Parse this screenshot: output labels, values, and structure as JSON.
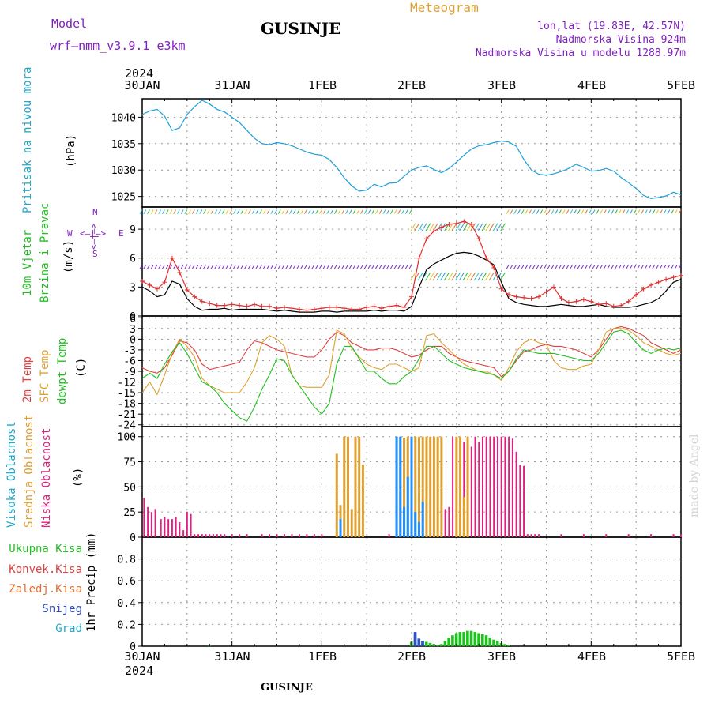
{
  "header": {
    "model_label": "Model",
    "model_name": "wrf—nmm_v3.9.1  e3km",
    "location_title": "GUSINJE",
    "meteogram_label": "Meteogram",
    "coords": "lon,lat (19.83E, 42.57N)",
    "elevation": "Nadmorska Visina 924m",
    "model_elevation": "Nadmorska Visina u modelu 1288.97m",
    "year_top": "2024",
    "year_bottom": "2024",
    "footer_location": "GUSINJE",
    "watermark": "made by Angel"
  },
  "time_axis": {
    "labels": [
      "30JAN",
      "31JAN",
      "1FEB",
      "2FEB",
      "3FEB",
      "4FEB",
      "5FEB"
    ],
    "hours_range": [
      0,
      144
    ]
  },
  "labels": {
    "pressure": "Pritisak na nivou mora",
    "pressure_unit": "(hPa)",
    "wind_a": "10m Vjetar",
    "wind_b": "Brzina i Pravac",
    "wind_unit": "(m/s)",
    "compass_n": "N",
    "compass_s": "S",
    "compass_w": "W",
    "compass_e": "E",
    "compass_arrows": "<—|—>",
    "temp_2m": "2m Temp",
    "temp_sfc": "SFC Temp",
    "temp_dew": "dewpt Temp",
    "temp_unit": "(C)",
    "cloud_high": "Visoka Oblacnost",
    "cloud_mid": "Srednja Oblacnost",
    "cloud_low": "Niska Oblacnost",
    "cloud_unit": "(%)",
    "precip_total": "Ukupna Kisa",
    "precip_conv": "Konvek.Kisa",
    "precip_frz": "Zaledj.Kisa",
    "precip_snow": "Snijeg",
    "precip_grad": "Grad",
    "precip_unit": "1hr Precip (mm)"
  },
  "colors": {
    "pressure": "#1ea0d8",
    "wind_speed": "#000000",
    "wind_gust": "#e03030",
    "wind_violet": "#7b2fc8",
    "temp_2m": "#e04040",
    "temp_sfc": "#e0a030",
    "temp_dew": "#20c020",
    "cloud_high": "#1e90ff",
    "cloud_mid": "#e0a030",
    "cloud_low": "#e0207f",
    "precip_total": "#20c020",
    "precip_snow": "#3050c8",
    "purple_text": "#8020c0",
    "orange_text": "#e0a030",
    "cyan_text": "#20a8c8",
    "green_text": "#20c020",
    "red_text": "#e04040",
    "blue_text": "#3050c8"
  },
  "chart_data": [
    {
      "type": "line",
      "name": "pressure",
      "ylim": [
        1023,
        1043.5
      ],
      "yticks": [
        1025,
        1030,
        1035,
        1040
      ],
      "x": [
        0,
        2,
        4,
        6,
        8,
        10,
        12,
        14,
        16,
        18,
        20,
        22,
        24,
        26,
        28,
        30,
        32,
        34,
        36,
        38,
        40,
        42,
        44,
        46,
        48,
        50,
        52,
        54,
        56,
        58,
        60,
        62,
        64,
        66,
        68,
        70,
        72,
        74,
        76,
        78,
        80,
        82,
        84,
        86,
        88,
        90,
        92,
        94,
        96,
        98,
        100,
        102,
        104,
        106,
        108,
        110,
        112,
        114,
        116,
        118,
        120,
        122,
        124,
        126,
        128,
        130,
        132,
        134,
        136,
        138,
        140,
        142,
        144
      ],
      "values": [
        1040.5,
        1041.2,
        1041.5,
        1040.2,
        1037.5,
        1038.0,
        1040.5,
        1042.0,
        1043.2,
        1042.5,
        1041.5,
        1041.0,
        1040.0,
        1039.0,
        1037.5,
        1036.0,
        1035.0,
        1034.8,
        1035.2,
        1035.0,
        1034.6,
        1034.0,
        1033.4,
        1033.0,
        1032.8,
        1032.0,
        1030.5,
        1028.5,
        1027.0,
        1026.0,
        1026.2,
        1027.3,
        1026.8,
        1027.5,
        1027.6,
        1028.8,
        1030.0,
        1030.5,
        1030.8,
        1030.1,
        1029.5,
        1030.3,
        1031.5,
        1032.8,
        1034.0,
        1034.6,
        1034.8,
        1035.2,
        1035.5,
        1035.3,
        1034.5,
        1032.0,
        1030.0,
        1029.2,
        1029.0,
        1029.3,
        1029.7,
        1030.3,
        1031.1,
        1030.5,
        1029.8,
        1029.9,
        1030.3,
        1029.8,
        1028.6,
        1027.6,
        1026.5,
        1025.2,
        1024.6,
        1024.8,
        1025.1,
        1025.8,
        1025.3
      ]
    },
    {
      "type": "line",
      "name": "wind",
      "ylim": [
        0,
        11.3
      ],
      "yticks": [
        0,
        3,
        6,
        9
      ],
      "x": [
        0,
        2,
        4,
        6,
        8,
        10,
        12,
        14,
        16,
        18,
        20,
        22,
        24,
        26,
        28,
        30,
        32,
        34,
        36,
        38,
        40,
        42,
        44,
        46,
        48,
        50,
        52,
        54,
        56,
        58,
        60,
        62,
        64,
        66,
        68,
        70,
        72,
        74,
        76,
        78,
        80,
        82,
        84,
        86,
        88,
        90,
        92,
        94,
        96,
        98,
        100,
        102,
        104,
        106,
        108,
        110,
        112,
        114,
        116,
        118,
        120,
        122,
        124,
        126,
        128,
        130,
        132,
        134,
        136,
        138,
        140,
        142,
        144
      ],
      "series": [
        {
          "name": "speed",
          "values": [
            3.0,
            2.6,
            2.0,
            2.2,
            3.6,
            3.3,
            1.8,
            1.0,
            0.6,
            0.7,
            0.7,
            0.8,
            0.6,
            0.7,
            0.7,
            0.7,
            0.7,
            0.6,
            0.5,
            0.6,
            0.5,
            0.4,
            0.4,
            0.4,
            0.5,
            0.5,
            0.4,
            0.5,
            0.5,
            0.5,
            0.5,
            0.6,
            0.5,
            0.6,
            0.6,
            0.5,
            1.0,
            3.0,
            4.8,
            5.4,
            5.8,
            6.2,
            6.5,
            6.6,
            6.5,
            6.2,
            5.8,
            5.3,
            3.5,
            1.8,
            1.4,
            1.2,
            1.1,
            1.0,
            1.0,
            1.1,
            1.2,
            1.1,
            1.0,
            1.0,
            1.1,
            1.2,
            1.0,
            0.9,
            0.9,
            0.9,
            1.0,
            1.2,
            1.4,
            1.8,
            2.6,
            3.5,
            3.8
          ]
        },
        {
          "name": "gust",
          "values": [
            3.6,
            3.2,
            2.8,
            3.5,
            6.0,
            4.5,
            2.7,
            2.0,
            1.5,
            1.3,
            1.1,
            1.1,
            1.2,
            1.1,
            1.0,
            1.2,
            1.0,
            1.0,
            0.8,
            0.9,
            0.8,
            0.7,
            0.6,
            0.7,
            0.8,
            0.9,
            0.9,
            0.8,
            0.7,
            0.7,
            0.9,
            1.0,
            0.8,
            1.0,
            1.1,
            0.9,
            2.0,
            6.0,
            8.0,
            8.8,
            9.2,
            9.5,
            9.6,
            9.8,
            9.5,
            8.0,
            6.0,
            5.0,
            2.8,
            2.2,
            2.0,
            1.9,
            1.8,
            2.0,
            2.5,
            3.0,
            1.8,
            1.4,
            1.5,
            1.7,
            1.5,
            1.2,
            1.3,
            1.0,
            1.1,
            1.5,
            2.2,
            2.8,
            3.2,
            3.5,
            3.8,
            4.0,
            4.2
          ]
        }
      ]
    },
    {
      "type": "line",
      "name": "temperature",
      "ylim": [
        -24.5,
        6.5
      ],
      "yticks": [
        -24,
        -21,
        -18,
        -15,
        -12,
        -9,
        -6,
        -3,
        0,
        3,
        6
      ],
      "x": [
        0,
        2,
        4,
        6,
        8,
        10,
        12,
        14,
        16,
        18,
        20,
        22,
        24,
        26,
        28,
        30,
        32,
        34,
        36,
        38,
        40,
        42,
        44,
        46,
        48,
        50,
        52,
        54,
        56,
        58,
        60,
        62,
        64,
        66,
        68,
        70,
        72,
        74,
        76,
        78,
        80,
        82,
        84,
        86,
        88,
        90,
        92,
        94,
        96,
        98,
        100,
        102,
        104,
        106,
        108,
        110,
        112,
        114,
        116,
        118,
        120,
        122,
        124,
        126,
        128,
        130,
        132,
        134,
        136,
        138,
        140,
        142,
        144
      ],
      "series": [
        {
          "name": "2m",
          "values": [
            -8,
            -9,
            -9.5,
            -8,
            -4.5,
            -0.5,
            -1,
            -3,
            -7,
            -8.5,
            -8,
            -7.5,
            -7,
            -6.5,
            -3,
            -0.5,
            -1,
            -2,
            -3,
            -3.5,
            -4,
            -4.5,
            -5,
            -5,
            -3,
            0,
            2,
            1,
            -1,
            -2,
            -3,
            -3,
            -2.5,
            -2.5,
            -3,
            -4,
            -5,
            -4.5,
            -3,
            -2,
            -2,
            -4,
            -5,
            -6,
            -6.5,
            -7,
            -7.5,
            -8,
            -10.5,
            -9,
            -6,
            -3.5,
            -3,
            -2,
            -1.5,
            -2,
            -2,
            -2.5,
            -3,
            -4,
            -5,
            -3,
            0,
            3,
            3.5,
            3,
            2,
            1,
            -1,
            -2,
            -3,
            -4,
            -3
          ]
        },
        {
          "name": "sfc",
          "values": [
            -15,
            -12,
            -15.5,
            -10,
            -4,
            0,
            -2,
            -5,
            -11,
            -13,
            -14,
            -15,
            -15,
            -15,
            -12,
            -8,
            -1,
            1,
            0,
            -2,
            -10,
            -13,
            -13.5,
            -13.5,
            -13.5,
            -10,
            2.5,
            1.5,
            -2.5,
            -5,
            -7,
            -8,
            -8.5,
            -7,
            -7,
            -8,
            -9,
            -8,
            1,
            1.5,
            -1,
            -3,
            -5,
            -7,
            -8,
            -9,
            -9,
            -10,
            -11.5,
            -8,
            -3.5,
            -1,
            0,
            -1,
            -1.5,
            -6,
            -8,
            -8.5,
            -8.5,
            -7.5,
            -7,
            -3,
            2,
            3,
            3,
            2.5,
            1,
            -1,
            -2,
            -3,
            -4,
            -4.5,
            -4
          ]
        },
        {
          "name": "dew",
          "values": [
            -11,
            -9.5,
            -11,
            -7,
            -3.5,
            -1,
            -4,
            -8,
            -12,
            -13,
            -15,
            -18,
            -20,
            -22,
            -23,
            -19,
            -14,
            -10,
            -5.5,
            -6,
            -10,
            -13,
            -16,
            -19,
            -21,
            -18,
            -7,
            -2,
            -2,
            -5.5,
            -9,
            -9,
            -11,
            -12.5,
            -12.5,
            -10.5,
            -9,
            -5.5,
            -2,
            -2,
            -4,
            -6,
            -7,
            -8,
            -8.5,
            -9,
            -9.5,
            -10,
            -11,
            -9,
            -5.5,
            -3,
            -3.5,
            -4,
            -4,
            -4,
            -4.5,
            -5,
            -5.5,
            -6,
            -6,
            -4,
            -1,
            2,
            2.5,
            1.5,
            -1,
            -3,
            -4,
            -3,
            -2.5,
            -3,
            -2.5
          ]
        }
      ]
    },
    {
      "type": "bar",
      "name": "cloudiness",
      "ylim": [
        0,
        110
      ],
      "yticks": [
        0,
        25,
        50,
        75,
        100
      ],
      "series": [
        {
          "name": "low",
          "x": [
            0.5,
            1.5,
            2.5,
            3.5,
            5,
            6,
            7,
            8,
            9,
            10,
            11,
            12,
            13,
            14,
            15,
            16,
            17,
            18,
            19,
            20,
            21,
            22,
            24,
            26,
            28,
            32,
            34,
            36,
            38,
            40,
            42,
            44,
            46,
            48,
            52,
            58,
            66,
            70,
            80,
            81,
            82,
            83,
            84,
            85,
            86,
            87,
            88,
            89,
            90,
            91,
            92,
            93,
            94,
            95,
            96,
            97,
            98,
            99,
            100,
            101,
            102,
            103,
            104,
            105,
            106,
            112,
            118,
            124,
            130,
            136,
            142,
            144
          ],
          "values": [
            39,
            30,
            25,
            28,
            18,
            20,
            18,
            18,
            20,
            15,
            7,
            25,
            23,
            3,
            3,
            3,
            3,
            3,
            3,
            3,
            3,
            3,
            3,
            3,
            3,
            3,
            3,
            3,
            3,
            3,
            3,
            3,
            3,
            3,
            3,
            3,
            3,
            3,
            30,
            28,
            30,
            100,
            95,
            100,
            95,
            100,
            90,
            100,
            95,
            100,
            100,
            100,
            100,
            100,
            100,
            100,
            100,
            98,
            85,
            72,
            71,
            3,
            3,
            3,
            3,
            3,
            3,
            3,
            3,
            3,
            3,
            3
          ]
        },
        {
          "name": "mid",
          "x": [
            52,
            53,
            54,
            55,
            56,
            57,
            58,
            59,
            68,
            69,
            70,
            71,
            72,
            73,
            74,
            75,
            76,
            77,
            78,
            79,
            80,
            84,
            85,
            86,
            87
          ],
          "values": [
            83,
            32,
            100,
            100,
            28,
            100,
            100,
            72,
            100,
            100,
            99,
            100,
            100,
            100,
            100,
            100,
            100,
            100,
            100,
            100,
            100,
            100,
            100,
            40,
            100
          ]
        },
        {
          "name": "high",
          "x": [
            53,
            68,
            69,
            70,
            71,
            72,
            73,
            74,
            75
          ],
          "values": [
            18,
            100,
            100,
            30,
            60,
            100,
            25,
            15,
            35
          ]
        }
      ]
    },
    {
      "type": "bar",
      "name": "precipitation",
      "ylim": [
        0,
        1.0
      ],
      "yticks": [
        0,
        0.2,
        0.4,
        0.6,
        0.8
      ],
      "series": [
        {
          "name": "total",
          "x": [
            18,
            72,
            73,
            74,
            75,
            76,
            77,
            78,
            79,
            80,
            81,
            82,
            83,
            84,
            85,
            86,
            87,
            88,
            89,
            90,
            91,
            92,
            93,
            94,
            95,
            96,
            97,
            98
          ],
          "values": [
            0.005,
            0.04,
            0.1,
            0.06,
            0.05,
            0.04,
            0.03,
            0.02,
            0.01,
            0.02,
            0.05,
            0.08,
            0.1,
            0.12,
            0.13,
            0.13,
            0.14,
            0.14,
            0.13,
            0.12,
            0.11,
            0.1,
            0.08,
            0.06,
            0.05,
            0.03,
            0.02,
            0.01
          ]
        },
        {
          "name": "snow",
          "x": [
            73,
            74,
            75
          ],
          "values": [
            0.13,
            0.07,
            0.05
          ]
        }
      ]
    }
  ]
}
